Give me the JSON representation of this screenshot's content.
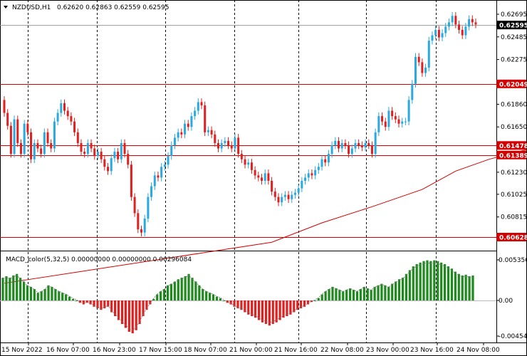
{
  "window": {
    "symbol_info": "NZDUSD,H1",
    "ohlc": "0.62620 0.62863 0.62559 0.62595"
  },
  "indicator": {
    "label": "MACD_color(5,32,5) 0.00000000 0.00000000 0.00296084",
    "axis_labels": [
      "0.0053561",
      "0.00",
      "-0.0045471"
    ],
    "axis_values": [
      0.0053561,
      0.0,
      -0.0045471
    ]
  },
  "price_axis": {
    "labels": [
      "0.62695",
      "0.62485",
      "0.62275",
      "0.61860",
      "0.61650",
      "0.61230",
      "0.61025",
      "0.60815"
    ],
    "values": [
      0.62695,
      0.62485,
      0.62275,
      0.6186,
      0.6165,
      0.6123,
      0.61025,
      0.60815
    ]
  },
  "badges": {
    "current": {
      "text": "0.62595",
      "value": 0.62595,
      "color": "#000000"
    },
    "levels": [
      {
        "text": "0.62049",
        "value": 0.62049,
        "color": "#d40000"
      },
      {
        "text": "0.61478",
        "value": 0.61478,
        "color": "#d40000"
      },
      {
        "text": "0.61389",
        "value": 0.61389,
        "color": "#d40000"
      },
      {
        "text": "0.60628",
        "value": 0.60628,
        "color": "#d40000"
      }
    ]
  },
  "time_axis": {
    "labels": [
      "15 Nov 2022",
      "16 Nov 07:00",
      "16 Nov 23:00",
      "17 Nov 15:00",
      "18 Nov 07:00",
      "21 Nov 00:00",
      "21 Nov 16:00",
      "22 Nov 08:00",
      "23 Nov 00:00",
      "23 Nov 16:00",
      "24 Nov 08:00"
    ]
  },
  "colors": {
    "bull": "#29a9e0",
    "bear": "#e01f1f",
    "macd_pos": "#1e8a1e",
    "macd_neg": "#e01f1f",
    "level_line": "#d40000",
    "ma_line": "#d40000"
  },
  "chart_data": {
    "type": "candlestick",
    "price_axis_range": [
      0.606,
      0.6275
    ],
    "moving_average": [
      {
        "i": 0,
        "v": 0.602
      },
      {
        "i": 80,
        "v": 0.6058
      },
      {
        "i": 95,
        "v": 0.6076
      },
      {
        "i": 110,
        "v": 0.6091
      },
      {
        "i": 125,
        "v": 0.6107
      },
      {
        "i": 135,
        "v": 0.6124
      },
      {
        "i": 145,
        "v": 0.6135
      },
      {
        "i": 155,
        "v": 0.6143
      },
      {
        "i": 165,
        "v": 0.6149
      }
    ],
    "candles_close": [
      0.6178,
      0.6166,
      0.614,
      0.6172,
      0.615,
      0.614,
      0.6168,
      0.616,
      0.6135,
      0.615,
      0.6145,
      0.614,
      0.616,
      0.615,
      0.6145,
      0.617,
      0.6178,
      0.6187,
      0.618,
      0.6175,
      0.617,
      0.616,
      0.615,
      0.6142,
      0.614,
      0.615,
      0.6145,
      0.6138,
      0.6142,
      0.6135,
      0.6128,
      0.6124,
      0.6136,
      0.6142,
      0.6135,
      0.615,
      0.614,
      0.613,
      0.61,
      0.6085,
      0.607,
      0.6067,
      0.608,
      0.61,
      0.611,
      0.612,
      0.6118,
      0.6128,
      0.613,
      0.6138,
      0.6148,
      0.6155,
      0.616,
      0.6158,
      0.6168,
      0.6165,
      0.6175,
      0.618,
      0.6188,
      0.6185,
      0.616,
      0.6162,
      0.6158,
      0.615,
      0.6145,
      0.615,
      0.6152,
      0.6148,
      0.6145,
      0.6155,
      0.614,
      0.6135,
      0.613,
      0.6132,
      0.6125,
      0.612,
      0.6118,
      0.6115,
      0.6122,
      0.6115,
      0.6105,
      0.61,
      0.6095,
      0.61,
      0.6102,
      0.6098,
      0.6102,
      0.6104,
      0.6108,
      0.6115,
      0.6118,
      0.6122,
      0.612,
      0.6125,
      0.6128,
      0.6135,
      0.6132,
      0.614,
      0.6148,
      0.6152,
      0.6145,
      0.615,
      0.6148,
      0.614,
      0.6145,
      0.615,
      0.6148,
      0.6146,
      0.615,
      0.6148,
      0.614,
      0.616,
      0.6175,
      0.617,
      0.6165,
      0.618,
      0.6175,
      0.6172,
      0.6168,
      0.617,
      0.617,
      0.619,
      0.6205,
      0.623,
      0.6225,
      0.6215,
      0.622,
      0.6245,
      0.625,
      0.6255,
      0.6248,
      0.6252,
      0.6258,
      0.6262,
      0.6268,
      0.626,
      0.6255,
      0.625,
      0.6258,
      0.6265,
      0.6262,
      0.626
    ],
    "macd_histogram": [
      0.003,
      0.0032,
      0.003,
      0.0033,
      0.0035,
      0.003,
      0.0025,
      0.002,
      0.0018,
      0.0015,
      0.001,
      0.0012,
      0.0015,
      0.002,
      0.0018,
      0.0015,
      0.0012,
      0.001,
      0.0008,
      0.0005,
      0.0002,
      0.0,
      -0.0003,
      -0.0005,
      -0.0003,
      -0.0005,
      -0.0008,
      -0.001,
      -0.0012,
      -0.001,
      -0.0008,
      -0.0015,
      -0.002,
      -0.0025,
      -0.003,
      -0.0035,
      -0.004,
      -0.0042,
      -0.0038,
      -0.003,
      -0.002,
      -0.0012,
      -0.0005,
      0.0002,
      0.0008,
      0.0012,
      0.0015,
      0.002,
      0.0022,
      0.0025,
      0.0028,
      0.003,
      0.0032,
      0.0035,
      0.003,
      0.0025,
      0.002,
      0.0015,
      0.0012,
      0.001,
      0.0008,
      0.0005,
      0.0003,
      0.0,
      -0.0003,
      -0.0005,
      -0.0008,
      -0.001,
      -0.0012,
      -0.0015,
      -0.0018,
      -0.002,
      -0.0022,
      -0.0025,
      -0.0028,
      -0.003,
      -0.0032,
      -0.003,
      -0.0028,
      -0.0025,
      -0.0022,
      -0.002,
      -0.0018,
      -0.0015,
      -0.0012,
      -0.001,
      -0.0008,
      -0.0005,
      -0.0002,
      0.0,
      0.0003,
      0.0008,
      0.0012,
      0.0015,
      0.0018,
      0.0016,
      0.0014,
      0.0012,
      0.0014,
      0.0016,
      0.0014,
      0.0012,
      0.0015,
      0.0018,
      0.0016,
      0.0014,
      0.0018,
      0.002,
      0.0022,
      0.002,
      0.0018,
      0.0022,
      0.0025,
      0.0028,
      0.003,
      0.0035,
      0.004,
      0.0045,
      0.0048,
      0.005,
      0.0052,
      0.0053,
      0.0052,
      0.0053,
      0.0052,
      0.005,
      0.0048,
      0.0045,
      0.0042,
      0.0038,
      0.0035,
      0.0033,
      0.0034,
      0.0032,
      0.0033
    ]
  }
}
